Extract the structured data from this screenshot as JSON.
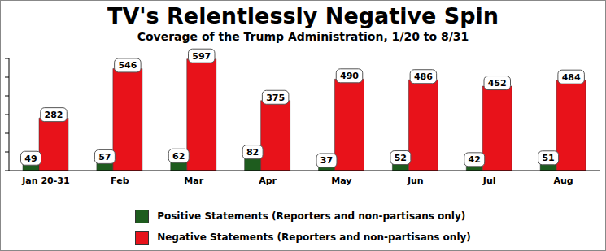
{
  "chart_data": {
    "type": "bar",
    "title": "TV's Relentlessly Negative Spin",
    "subtitle": "Coverage of the Trump Administration, 1/20 to 8/31",
    "categories": [
      "Jan 20-31",
      "Feb",
      "Mar",
      "Apr",
      "May",
      "Jun",
      "Jul",
      "Aug"
    ],
    "series": [
      {
        "name": "Positive Statements (Reporters and non-partisans only)",
        "color": "#1e5c1e",
        "values": [
          49,
          57,
          62,
          82,
          37,
          52,
          42,
          51
        ]
      },
      {
        "name": "Negative Statements (Reporters and non-partisans only)",
        "color": "#e8121a",
        "values": [
          282,
          546,
          597,
          375,
          490,
          486,
          452,
          484
        ]
      }
    ],
    "ylim": [
      0,
      600
    ],
    "yticks": [
      0,
      100,
      200,
      300,
      400,
      500,
      600
    ],
    "tick_labels": "x",
    "data_labels": true,
    "legend": "bottom",
    "grid": false
  }
}
